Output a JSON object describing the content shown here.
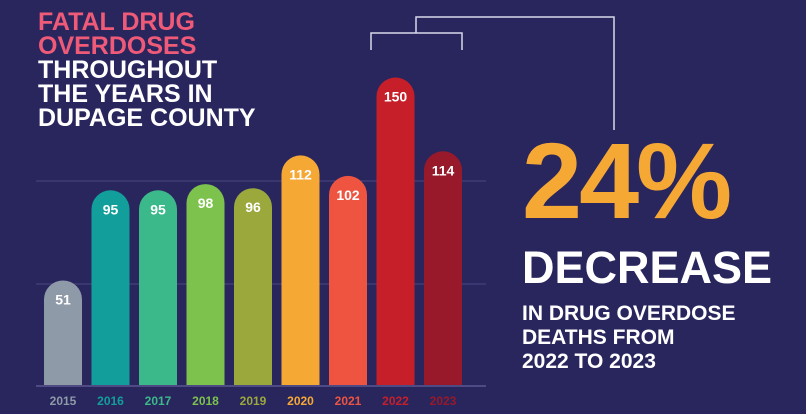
{
  "chart_data": {
    "type": "bar",
    "title_highlight": [
      "FATAL DRUG",
      "OVERDOSES"
    ],
    "title": [
      "THROUGHOUT",
      "THE YEARS IN",
      "DUPAGE COUNTY"
    ],
    "categories": [
      "2015",
      "2016",
      "2017",
      "2018",
      "2019",
      "2020",
      "2021",
      "2022",
      "2023"
    ],
    "values": [
      51,
      95,
      95,
      98,
      96,
      112,
      102,
      150,
      114
    ],
    "colors": [
      "#8f9aa8",
      "#129f9c",
      "#3bb98a",
      "#7dc24c",
      "#9aa83c",
      "#f6a834",
      "#ee5440",
      "#c61f2a",
      "#98192a"
    ],
    "annotations": {
      "headline": "24%",
      "subhead": "DECREASE",
      "text": [
        "IN DRUG OVERDOSE",
        "DEATHS FROM",
        "2022 TO 2023"
      ]
    }
  }
}
